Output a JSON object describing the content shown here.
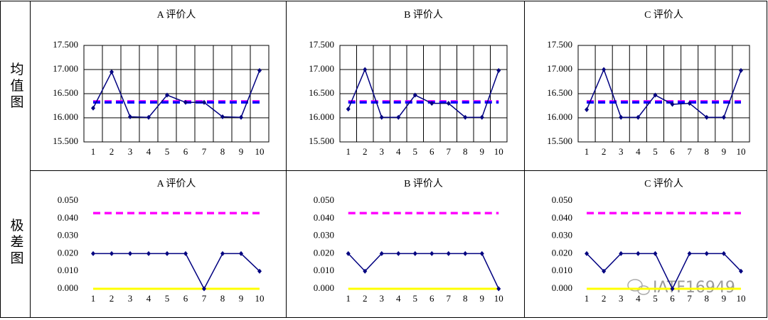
{
  "row_labels": [
    "均值图",
    "极差图"
  ],
  "watermark": "IATF16949",
  "chart_data": [
    {
      "type": "line",
      "title": "A 评价人",
      "categories": [
        1,
        2,
        3,
        4,
        5,
        6,
        7,
        8,
        9,
        10
      ],
      "grid": true,
      "ylim": [
        15.5,
        17.5
      ],
      "yticks": [
        {
          "value": 15.5,
          "label": "15.500"
        },
        {
          "value": 16,
          "label": "16.000"
        },
        {
          "value": 16.5,
          "label": "16.500"
        },
        {
          "value": 17,
          "label": "17.000"
        },
        {
          "value": 17.5,
          "label": "17.500"
        }
      ],
      "series": [
        {
          "color": "#ff00ff",
          "dash": true,
          "values": [
            16.34,
            16.34,
            16.34,
            16.34,
            16.34,
            16.34,
            16.34,
            16.34,
            16.34,
            16.34
          ]
        },
        {
          "color": "#0000ff",
          "dash": true,
          "values": [
            16.32,
            16.32,
            16.32,
            16.32,
            16.32,
            16.32,
            16.32,
            16.32,
            16.32,
            16.32
          ]
        },
        {
          "color": "#000080",
          "markers": true,
          "values": [
            16.2,
            16.95,
            16.02,
            16.01,
            16.47,
            16.32,
            16.32,
            16.02,
            16.01,
            16.98
          ]
        }
      ]
    },
    {
      "type": "line",
      "title": "B 评价人",
      "categories": [
        1,
        2,
        3,
        4,
        5,
        6,
        7,
        8,
        9,
        10
      ],
      "grid": true,
      "ylim": [
        15.5,
        17.5
      ],
      "yticks": [
        {
          "value": 15.5,
          "label": "15.500"
        },
        {
          "value": 16,
          "label": "16.000"
        },
        {
          "value": 16.5,
          "label": "16.500"
        },
        {
          "value": 17,
          "label": "17.000"
        },
        {
          "value": 17.5,
          "label": "17.500"
        }
      ],
      "series": [
        {
          "color": "#ff00ff",
          "dash": true,
          "values": [
            16.34,
            16.34,
            16.34,
            16.34,
            16.34,
            16.34,
            16.34,
            16.34,
            16.34,
            16.34
          ]
        },
        {
          "color": "#0000ff",
          "dash": true,
          "values": [
            16.32,
            16.32,
            16.32,
            16.32,
            16.32,
            16.32,
            16.32,
            16.32,
            16.32,
            16.32
          ]
        },
        {
          "color": "#000080",
          "markers": true,
          "values": [
            16.18,
            17.0,
            16.01,
            16.01,
            16.47,
            16.3,
            16.3,
            16.01,
            16.01,
            16.98
          ]
        }
      ]
    },
    {
      "type": "line",
      "title": "C 评价人",
      "categories": [
        1,
        2,
        3,
        4,
        5,
        6,
        7,
        8,
        9,
        10
      ],
      "grid": true,
      "ylim": [
        15.5,
        17.5
      ],
      "yticks": [
        {
          "value": 15.5,
          "label": "15.500"
        },
        {
          "value": 16,
          "label": "16.000"
        },
        {
          "value": 16.5,
          "label": "16.500"
        },
        {
          "value": 17,
          "label": "17.000"
        },
        {
          "value": 17.5,
          "label": "17.500"
        }
      ],
      "series": [
        {
          "color": "#ff00ff",
          "dash": true,
          "values": [
            16.34,
            16.34,
            16.34,
            16.34,
            16.34,
            16.34,
            16.34,
            16.34,
            16.34,
            16.34
          ]
        },
        {
          "color": "#0000ff",
          "dash": true,
          "values": [
            16.32,
            16.32,
            16.32,
            16.32,
            16.32,
            16.32,
            16.32,
            16.32,
            16.32,
            16.32
          ]
        },
        {
          "color": "#000080",
          "markers": true,
          "values": [
            16.17,
            17.0,
            16.01,
            16.01,
            16.47,
            16.28,
            16.3,
            16.01,
            16.01,
            16.98
          ]
        }
      ]
    },
    {
      "type": "line",
      "title": "A 评价人",
      "categories": [
        1,
        2,
        3,
        4,
        5,
        6,
        7,
        8,
        9,
        10
      ],
      "grid": false,
      "ylim": [
        0,
        0.05
      ],
      "yticks": [
        {
          "value": 0,
          "label": "0.000"
        },
        {
          "value": 0.01,
          "label": "0.010"
        },
        {
          "value": 0.02,
          "label": "0.020"
        },
        {
          "value": 0.03,
          "label": "0.030"
        },
        {
          "value": 0.04,
          "label": "0.040"
        },
        {
          "value": 0.05,
          "label": "0.050"
        }
      ],
      "series": [
        {
          "color": "#ff00ff",
          "dash": true,
          "values": [
            0.043,
            0.043,
            0.043,
            0.043,
            0.043,
            0.043,
            0.043,
            0.043,
            0.043,
            0.043
          ]
        },
        {
          "color": "#ffff00",
          "values": [
            0,
            0,
            0,
            0,
            0,
            0,
            0,
            0,
            0,
            0
          ]
        },
        {
          "color": "#000080",
          "markers": true,
          "values": [
            0.02,
            0.02,
            0.02,
            0.02,
            0.02,
            0.02,
            0,
            0.02,
            0.02,
            0.01
          ]
        }
      ]
    },
    {
      "type": "line",
      "title": "B 评价人",
      "categories": [
        1,
        2,
        3,
        4,
        5,
        6,
        7,
        8,
        9,
        10
      ],
      "grid": false,
      "ylim": [
        0,
        0.05
      ],
      "yticks": [
        {
          "value": 0,
          "label": "0.000"
        },
        {
          "value": 0.01,
          "label": "0.010"
        },
        {
          "value": 0.02,
          "label": "0.020"
        },
        {
          "value": 0.03,
          "label": "0.030"
        },
        {
          "value": 0.04,
          "label": "0.040"
        },
        {
          "value": 0.05,
          "label": "0.050"
        }
      ],
      "series": [
        {
          "color": "#ff00ff",
          "dash": true,
          "values": [
            0.043,
            0.043,
            0.043,
            0.043,
            0.043,
            0.043,
            0.043,
            0.043,
            0.043,
            0.043
          ]
        },
        {
          "color": "#ffff00",
          "values": [
            0,
            0,
            0,
            0,
            0,
            0,
            0,
            0,
            0,
            0
          ]
        },
        {
          "color": "#000080",
          "markers": true,
          "values": [
            0.02,
            0.01,
            0.02,
            0.02,
            0.02,
            0.02,
            0.02,
            0.02,
            0.02,
            0
          ]
        }
      ]
    },
    {
      "type": "line",
      "title": "C 评价人",
      "categories": [
        1,
        2,
        3,
        4,
        5,
        6,
        7,
        8,
        9,
        10
      ],
      "grid": false,
      "ylim": [
        0,
        0.05
      ],
      "yticks": [
        {
          "value": 0,
          "label": "0.000"
        },
        {
          "value": 0.01,
          "label": "0.010"
        },
        {
          "value": 0.02,
          "label": "0.020"
        },
        {
          "value": 0.03,
          "label": "0.030"
        },
        {
          "value": 0.04,
          "label": "0.040"
        },
        {
          "value": 0.05,
          "label": "0.050"
        }
      ],
      "series": [
        {
          "color": "#ff00ff",
          "dash": true,
          "values": [
            0.043,
            0.043,
            0.043,
            0.043,
            0.043,
            0.043,
            0.043,
            0.043,
            0.043,
            0.043
          ]
        },
        {
          "color": "#ffff00",
          "values": [
            0,
            0,
            0,
            0,
            0,
            0,
            0,
            0,
            0,
            0
          ]
        },
        {
          "color": "#000080",
          "markers": true,
          "values": [
            0.02,
            0.01,
            0.02,
            0.02,
            0.02,
            0,
            0.02,
            0.02,
            0.02,
            0.01
          ]
        }
      ]
    }
  ]
}
